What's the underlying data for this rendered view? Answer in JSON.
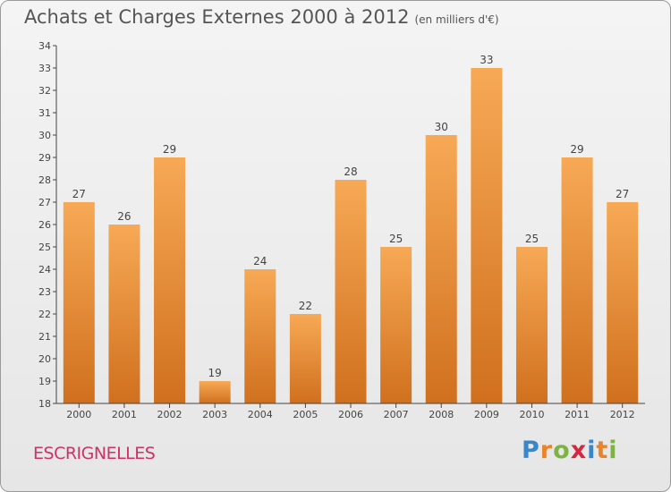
{
  "title": "Achats et Charges Externes 2000 à 2012",
  "unit": "(en milliers d'€)",
  "commune": "ESCRIGNELLES",
  "logo": {
    "letters": [
      "P",
      "r",
      "o",
      "x",
      "i",
      "t",
      "i"
    ],
    "colors": [
      "#3a86c8",
      "#e8842a",
      "#7cb342",
      "#d7263d",
      "#3a86c8",
      "#e8842a",
      "#7cb342"
    ]
  },
  "colors": {
    "bar_top": "#f7a955",
    "bar_bottom": "#d0701e",
    "axis": "#444444",
    "grid": "#cfcfcf"
  },
  "chart_data": {
    "type": "bar",
    "title": "Achats et Charges Externes 2000 à 2012",
    "categories": [
      "2000",
      "2001",
      "2002",
      "2003",
      "2004",
      "2005",
      "2006",
      "2007",
      "2008",
      "2009",
      "2010",
      "2011",
      "2012"
    ],
    "values": [
      27,
      26,
      29,
      19,
      24,
      22,
      28,
      25,
      30,
      33,
      25,
      29,
      27
    ],
    "ylim": [
      18,
      34
    ],
    "yticks": [
      18,
      19,
      20,
      21,
      22,
      23,
      24,
      25,
      26,
      27,
      28,
      29,
      30,
      31,
      32,
      33,
      34
    ],
    "grid": false
  }
}
